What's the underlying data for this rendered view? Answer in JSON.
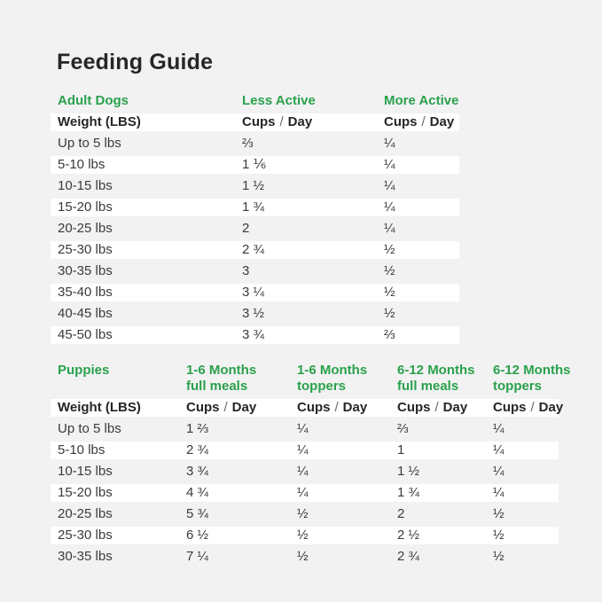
{
  "page": {
    "title": "Feeding Guide"
  },
  "colors": {
    "accent_green": "#2aa14b",
    "page_bg": "#f2f2f3",
    "row_white": "#ffffff",
    "text_dark": "#262626",
    "text_body": "#3a3a3a"
  },
  "labels": {
    "weight_header": "Weight (LBS)",
    "cups": "Cups",
    "slash": "/",
    "day": "Day"
  },
  "adult_table": {
    "section_label": "Adult Dogs",
    "columns": [
      "Less Active",
      "More Active"
    ],
    "rows": [
      {
        "weight": "Up to 5 lbs",
        "less": "⅔",
        "more": "¼"
      },
      {
        "weight": "5-10 lbs",
        "less": "1 ⅙",
        "more": "¼"
      },
      {
        "weight": "10-15 lbs",
        "less": "1 ½",
        "more": "¼"
      },
      {
        "weight": "15-20 lbs",
        "less": "1 ¾",
        "more": "¼"
      },
      {
        "weight": "20-25 lbs",
        "less": "2",
        "more": "¼"
      },
      {
        "weight": "25-30 lbs",
        "less": "2 ¾",
        "more": "½"
      },
      {
        "weight": "30-35 lbs",
        "less": "3",
        "more": "½"
      },
      {
        "weight": "35-40 lbs",
        "less": "3 ¼",
        "more": "½"
      },
      {
        "weight": "40-45 lbs",
        "less": "3 ½",
        "more": "½"
      },
      {
        "weight": "45-50 lbs",
        "less": "3 ¾",
        "more": "⅔"
      }
    ]
  },
  "puppies_table": {
    "section_label": "Puppies",
    "columns": [
      {
        "line1": "1-6 Months",
        "line2": "full meals"
      },
      {
        "line1": "1-6 Months",
        "line2": "toppers"
      },
      {
        "line1": "6-12 Months",
        "line2": "full meals"
      },
      {
        "line1": "6-12 Months",
        "line2": "toppers"
      }
    ],
    "rows": [
      {
        "weight": "Up to 5 lbs",
        "v1": "1 ⅔",
        "v2": "¼",
        "v3": "⅔",
        "v4": "¼"
      },
      {
        "weight": "5-10 lbs",
        "v1": "2 ¾",
        "v2": "¼",
        "v3": "1",
        "v4": "¼"
      },
      {
        "weight": "10-15 lbs",
        "v1": "3 ¾",
        "v2": "¼",
        "v3": "1 ½",
        "v4": "¼"
      },
      {
        "weight": "15-20 lbs",
        "v1": "4 ¾",
        "v2": "¼",
        "v3": "1 ¾",
        "v4": "¼"
      },
      {
        "weight": "20-25 lbs",
        "v1": "5 ¾",
        "v2": "½",
        "v3": "2",
        "v4": "½"
      },
      {
        "weight": "25-30 lbs",
        "v1": "6 ½",
        "v2": "½",
        "v3": "2 ½",
        "v4": "½"
      },
      {
        "weight": "30-35 lbs",
        "v1": "7 ¼",
        "v2": "½",
        "v3": "2 ¾",
        "v4": "½"
      }
    ]
  },
  "chart_data": [
    {
      "type": "table",
      "title": "Adult Dogs",
      "columns": [
        "Weight (LBS)",
        "Less Active Cups / Day",
        "More Active Cups / Day"
      ],
      "rows": [
        [
          "Up to 5 lbs",
          "2/3",
          "1/4"
        ],
        [
          "5-10 lbs",
          "1 1/6",
          "1/4"
        ],
        [
          "10-15 lbs",
          "1 1/2",
          "1/4"
        ],
        [
          "15-20 lbs",
          "1 3/4",
          "1/4"
        ],
        [
          "20-25 lbs",
          "2",
          "1/4"
        ],
        [
          "25-30 lbs",
          "2 3/4",
          "1/2"
        ],
        [
          "30-35 lbs",
          "3",
          "1/2"
        ],
        [
          "35-40 lbs",
          "3 1/4",
          "1/2"
        ],
        [
          "40-45 lbs",
          "3 1/2",
          "1/2"
        ],
        [
          "45-50 lbs",
          "3 3/4",
          "2/3"
        ]
      ]
    },
    {
      "type": "table",
      "title": "Puppies",
      "columns": [
        "Weight (LBS)",
        "1-6 Months full meals Cups / Day",
        "1-6 Months toppers Cups / Day",
        "6-12 Months full meals Cups / Day",
        "6-12 Months toppers Cups / Day"
      ],
      "rows": [
        [
          "Up to 5 lbs",
          "1 2/3",
          "1/4",
          "2/3",
          "1/4"
        ],
        [
          "5-10 lbs",
          "2 3/4",
          "1/4",
          "1",
          "1/4"
        ],
        [
          "10-15 lbs",
          "3 3/4",
          "1/4",
          "1 1/2",
          "1/4"
        ],
        [
          "15-20 lbs",
          "4 3/4",
          "1/4",
          "1 3/4",
          "1/4"
        ],
        [
          "20-25 lbs",
          "5 3/4",
          "1/2",
          "2",
          "1/2"
        ],
        [
          "25-30 lbs",
          "6 1/2",
          "1/2",
          "2 1/2",
          "1/2"
        ],
        [
          "30-35 lbs",
          "7 1/4",
          "1/2",
          "2 3/4",
          "1/2"
        ]
      ]
    }
  ]
}
